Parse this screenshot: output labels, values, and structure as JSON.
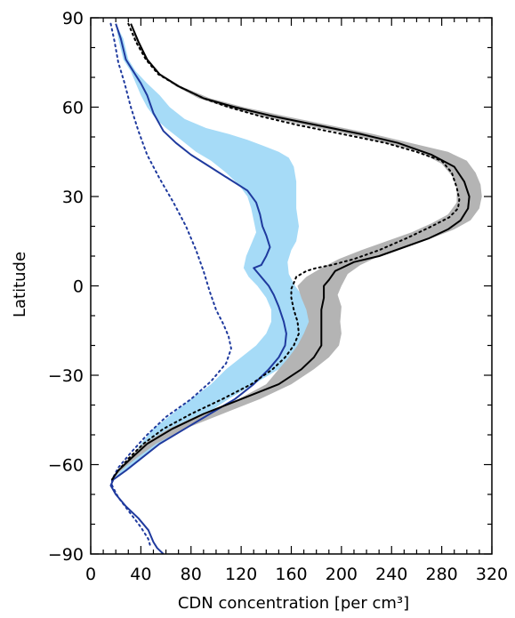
{
  "chart_data": {
    "type": "line",
    "title": "",
    "xlabel": "CDN concentration [per cm³]",
    "ylabel": "Latitude",
    "xlim": [
      0,
      320
    ],
    "ylim": [
      -90,
      90
    ],
    "xticks": [
      0,
      40,
      80,
      120,
      160,
      200,
      240,
      280,
      320
    ],
    "yticks": [
      90,
      60,
      30,
      0,
      -30,
      -60,
      -90
    ],
    "xtick_labels": [
      "0",
      "40",
      "80",
      "120",
      "160",
      "200",
      "240",
      "280",
      "320"
    ],
    "ytick_labels": [
      "90",
      "60",
      "30",
      "0",
      "−30",
      "−60",
      "−90"
    ],
    "grid": false,
    "legend": null,
    "colors": {
      "blue_line": "#1f3a9e",
      "blue_band": "#a6dbf7",
      "black_line": "#000000",
      "gray_band": "#b4b4b4"
    },
    "series": [
      {
        "color": "#1f3a9e",
        "style": "solid",
        "band_color": "#a6dbf7",
        "points": [
          [
            20,
            88
          ],
          [
            24,
            83
          ],
          [
            28,
            76
          ],
          [
            34,
            72
          ],
          [
            40,
            68
          ],
          [
            45,
            64
          ],
          [
            50,
            58
          ],
          [
            58,
            52
          ],
          [
            68,
            48
          ],
          [
            80,
            44
          ],
          [
            95,
            40
          ],
          [
            110,
            36
          ],
          [
            125,
            32
          ],
          [
            132,
            28
          ],
          [
            135,
            24
          ],
          [
            137,
            20
          ],
          [
            140,
            17
          ],
          [
            143,
            13
          ],
          [
            140,
            10
          ],
          [
            136,
            7
          ],
          [
            130,
            6
          ],
          [
            134,
            4
          ],
          [
            138,
            2
          ],
          [
            142,
            0
          ],
          [
            146,
            -3
          ],
          [
            150,
            -7
          ],
          [
            154,
            -12
          ],
          [
            156,
            -16
          ],
          [
            155,
            -20
          ],
          [
            150,
            -24
          ],
          [
            142,
            -28
          ],
          [
            130,
            -33
          ],
          [
            115,
            -38
          ],
          [
            95,
            -43
          ],
          [
            75,
            -48
          ],
          [
            55,
            -53
          ],
          [
            40,
            -58
          ],
          [
            28,
            -62
          ],
          [
            18,
            -65
          ],
          [
            16,
            -67
          ],
          [
            20,
            -70
          ],
          [
            28,
            -74
          ],
          [
            38,
            -78
          ],
          [
            46,
            -82
          ],
          [
            50,
            -86
          ],
          [
            53,
            -88
          ],
          [
            58,
            -90
          ]
        ],
        "band_upper": [
          [
            20,
            88
          ],
          [
            26,
            83
          ],
          [
            30,
            76
          ],
          [
            36,
            72
          ],
          [
            45,
            68
          ],
          [
            55,
            64
          ],
          [
            63,
            60
          ],
          [
            75,
            56
          ],
          [
            92,
            53
          ],
          [
            110,
            51
          ],
          [
            125,
            49
          ],
          [
            138,
            47
          ],
          [
            150,
            45
          ],
          [
            158,
            43
          ],
          [
            162,
            40
          ],
          [
            164,
            35
          ],
          [
            164,
            30
          ],
          [
            164,
            26
          ],
          [
            166,
            20
          ],
          [
            164,
            15
          ],
          [
            160,
            12
          ],
          [
            157,
            8
          ],
          [
            158,
            4
          ],
          [
            163,
            0
          ],
          [
            170,
            -4
          ],
          [
            177,
            -8
          ],
          [
            181,
            -12
          ],
          [
            180,
            -16
          ],
          [
            175,
            -20
          ],
          [
            165,
            -24
          ],
          [
            150,
            -28
          ],
          [
            130,
            -33
          ],
          [
            110,
            -38
          ],
          [
            92,
            -43
          ],
          [
            75,
            -48
          ],
          [
            55,
            -53
          ],
          [
            40,
            -58
          ],
          [
            28,
            -62
          ],
          [
            18,
            -65
          ]
        ],
        "band_lower": [
          [
            20,
            88
          ],
          [
            22,
            83
          ],
          [
            26,
            76
          ],
          [
            32,
            72
          ],
          [
            36,
            68
          ],
          [
            40,
            64
          ],
          [
            45,
            60
          ],
          [
            52,
            56
          ],
          [
            60,
            53
          ],
          [
            72,
            49
          ],
          [
            84,
            45
          ],
          [
            96,
            42
          ],
          [
            108,
            38
          ],
          [
            118,
            34
          ],
          [
            125,
            30
          ],
          [
            128,
            26
          ],
          [
            130,
            22
          ],
          [
            132,
            18
          ],
          [
            128,
            14
          ],
          [
            124,
            10
          ],
          [
            122,
            6
          ],
          [
            126,
            3
          ],
          [
            133,
            0
          ],
          [
            140,
            -4
          ],
          [
            144,
            -8
          ],
          [
            144,
            -12
          ],
          [
            140,
            -16
          ],
          [
            132,
            -20
          ],
          [
            120,
            -24
          ],
          [
            108,
            -28
          ],
          [
            96,
            -33
          ],
          [
            80,
            -38
          ],
          [
            65,
            -43
          ],
          [
            50,
            -48
          ],
          [
            40,
            -53
          ],
          [
            32,
            -58
          ],
          [
            24,
            -62
          ],
          [
            18,
            -65
          ]
        ]
      },
      {
        "color": "#1f3a9e",
        "style": "dotted",
        "points": [
          [
            16,
            88
          ],
          [
            19,
            82
          ],
          [
            22,
            75
          ],
          [
            27,
            68
          ],
          [
            32,
            60
          ],
          [
            38,
            52
          ],
          [
            45,
            44
          ],
          [
            55,
            36
          ],
          [
            66,
            28
          ],
          [
            76,
            20
          ],
          [
            84,
            12
          ],
          [
            90,
            5
          ],
          [
            95,
            -2
          ],
          [
            100,
            -8
          ],
          [
            106,
            -13
          ],
          [
            110,
            -17
          ],
          [
            112,
            -21
          ],
          [
            108,
            -26
          ],
          [
            96,
            -32
          ],
          [
            80,
            -38
          ],
          [
            60,
            -44
          ],
          [
            45,
            -50
          ],
          [
            32,
            -56
          ],
          [
            22,
            -61
          ],
          [
            17,
            -65
          ],
          [
            17,
            -67
          ],
          [
            22,
            -71
          ],
          [
            31,
            -76
          ],
          [
            40,
            -81
          ],
          [
            46,
            -85
          ],
          [
            48,
            -88
          ]
        ]
      },
      {
        "color": "#000000",
        "style": "solid",
        "band_color": "#b4b4b4",
        "points": [
          [
            32,
            88
          ],
          [
            38,
            82
          ],
          [
            45,
            76
          ],
          [
            55,
            71
          ],
          [
            70,
            67
          ],
          [
            90,
            63
          ],
          [
            115,
            60
          ],
          [
            145,
            57
          ],
          [
            180,
            54
          ],
          [
            215,
            51
          ],
          [
            245,
            48
          ],
          [
            272,
            44
          ],
          [
            290,
            40
          ],
          [
            298,
            35
          ],
          [
            302,
            30
          ],
          [
            301,
            26
          ],
          [
            295,
            22
          ],
          [
            285,
            19
          ],
          [
            270,
            16
          ],
          [
            250,
            13
          ],
          [
            230,
            10
          ],
          [
            210,
            8
          ],
          [
            195,
            5
          ],
          [
            190,
            2
          ],
          [
            186,
            0
          ],
          [
            186,
            -4
          ],
          [
            184,
            -8
          ],
          [
            184,
            -12
          ],
          [
            184,
            -16
          ],
          [
            184,
            -20
          ],
          [
            178,
            -24
          ],
          [
            168,
            -28
          ],
          [
            150,
            -33
          ],
          [
            120,
            -38
          ],
          [
            90,
            -43
          ],
          [
            65,
            -48
          ],
          [
            45,
            -53
          ],
          [
            32,
            -58
          ],
          [
            22,
            -62
          ],
          [
            17,
            -65
          ]
        ],
        "band_upper": [
          [
            32,
            88
          ],
          [
            38,
            82
          ],
          [
            46,
            76
          ],
          [
            56,
            71
          ],
          [
            72,
            67
          ],
          [
            95,
            63
          ],
          [
            122,
            60
          ],
          [
            155,
            57
          ],
          [
            190,
            54
          ],
          [
            225,
            51
          ],
          [
            255,
            48
          ],
          [
            285,
            45
          ],
          [
            300,
            42
          ],
          [
            307,
            38
          ],
          [
            311,
            34
          ],
          [
            312,
            30
          ],
          [
            310,
            26
          ],
          [
            303,
            22
          ],
          [
            290,
            19
          ],
          [
            272,
            16
          ],
          [
            250,
            13
          ],
          [
            230,
            10
          ],
          [
            215,
            7
          ],
          [
            205,
            4
          ],
          [
            200,
            0
          ],
          [
            197,
            -3
          ],
          [
            200,
            -7
          ],
          [
            199,
            -12
          ],
          [
            200,
            -16
          ],
          [
            198,
            -20
          ],
          [
            190,
            -24
          ],
          [
            178,
            -28
          ],
          [
            160,
            -33
          ],
          [
            135,
            -38
          ],
          [
            105,
            -43
          ],
          [
            75,
            -48
          ],
          [
            52,
            -53
          ],
          [
            36,
            -58
          ],
          [
            24,
            -62
          ],
          [
            17,
            -65
          ]
        ],
        "band_lower": [
          [
            32,
            88
          ],
          [
            36,
            82
          ],
          [
            44,
            76
          ],
          [
            54,
            71
          ],
          [
            68,
            67
          ],
          [
            86,
            63
          ],
          [
            108,
            60
          ],
          [
            136,
            57
          ],
          [
            170,
            54
          ],
          [
            205,
            51
          ],
          [
            235,
            48
          ],
          [
            262,
            45
          ],
          [
            280,
            41
          ],
          [
            288,
            37
          ],
          [
            292,
            33
          ],
          [
            292,
            28
          ],
          [
            285,
            24
          ],
          [
            272,
            21
          ],
          [
            256,
            18
          ],
          [
            236,
            15
          ],
          [
            216,
            12
          ],
          [
            198,
            9
          ],
          [
            184,
            6
          ],
          [
            172,
            3
          ],
          [
            165,
            0
          ],
          [
            168,
            -4
          ],
          [
            172,
            -8
          ],
          [
            174,
            -12
          ],
          [
            170,
            -16
          ],
          [
            165,
            -20
          ],
          [
            158,
            -24
          ],
          [
            150,
            -28
          ],
          [
            140,
            -33
          ],
          [
            118,
            -38
          ],
          [
            88,
            -43
          ],
          [
            62,
            -48
          ],
          [
            42,
            -53
          ],
          [
            30,
            -58
          ],
          [
            22,
            -62
          ],
          [
            17,
            -65
          ]
        ]
      },
      {
        "color": "#000000",
        "style": "dotted",
        "points": [
          [
            30,
            88
          ],
          [
            36,
            82
          ],
          [
            44,
            76
          ],
          [
            54,
            71
          ],
          [
            70,
            67
          ],
          [
            90,
            63
          ],
          [
            110,
            60
          ],
          [
            135,
            57
          ],
          [
            165,
            54
          ],
          [
            200,
            51
          ],
          [
            235,
            48
          ],
          [
            260,
            45
          ],
          [
            280,
            42
          ],
          [
            288,
            38
          ],
          [
            292,
            33
          ],
          [
            294,
            29
          ],
          [
            293,
            26
          ],
          [
            286,
            23
          ],
          [
            272,
            20
          ],
          [
            252,
            16
          ],
          [
            230,
            12
          ],
          [
            210,
            9
          ],
          [
            192,
            7
          ],
          [
            180,
            6
          ],
          [
            172,
            5
          ],
          [
            168,
            4
          ],
          [
            164,
            3
          ],
          [
            162,
            1
          ],
          [
            160,
            -1
          ],
          [
            160,
            -4
          ],
          [
            162,
            -8
          ],
          [
            165,
            -12
          ],
          [
            166,
            -16
          ],
          [
            162,
            -20
          ],
          [
            155,
            -24
          ],
          [
            145,
            -28
          ],
          [
            128,
            -33
          ],
          [
            105,
            -38
          ],
          [
            80,
            -43
          ],
          [
            58,
            -48
          ],
          [
            42,
            -53
          ],
          [
            30,
            -58
          ],
          [
            22,
            -62
          ],
          [
            17,
            -65
          ]
        ]
      }
    ]
  }
}
